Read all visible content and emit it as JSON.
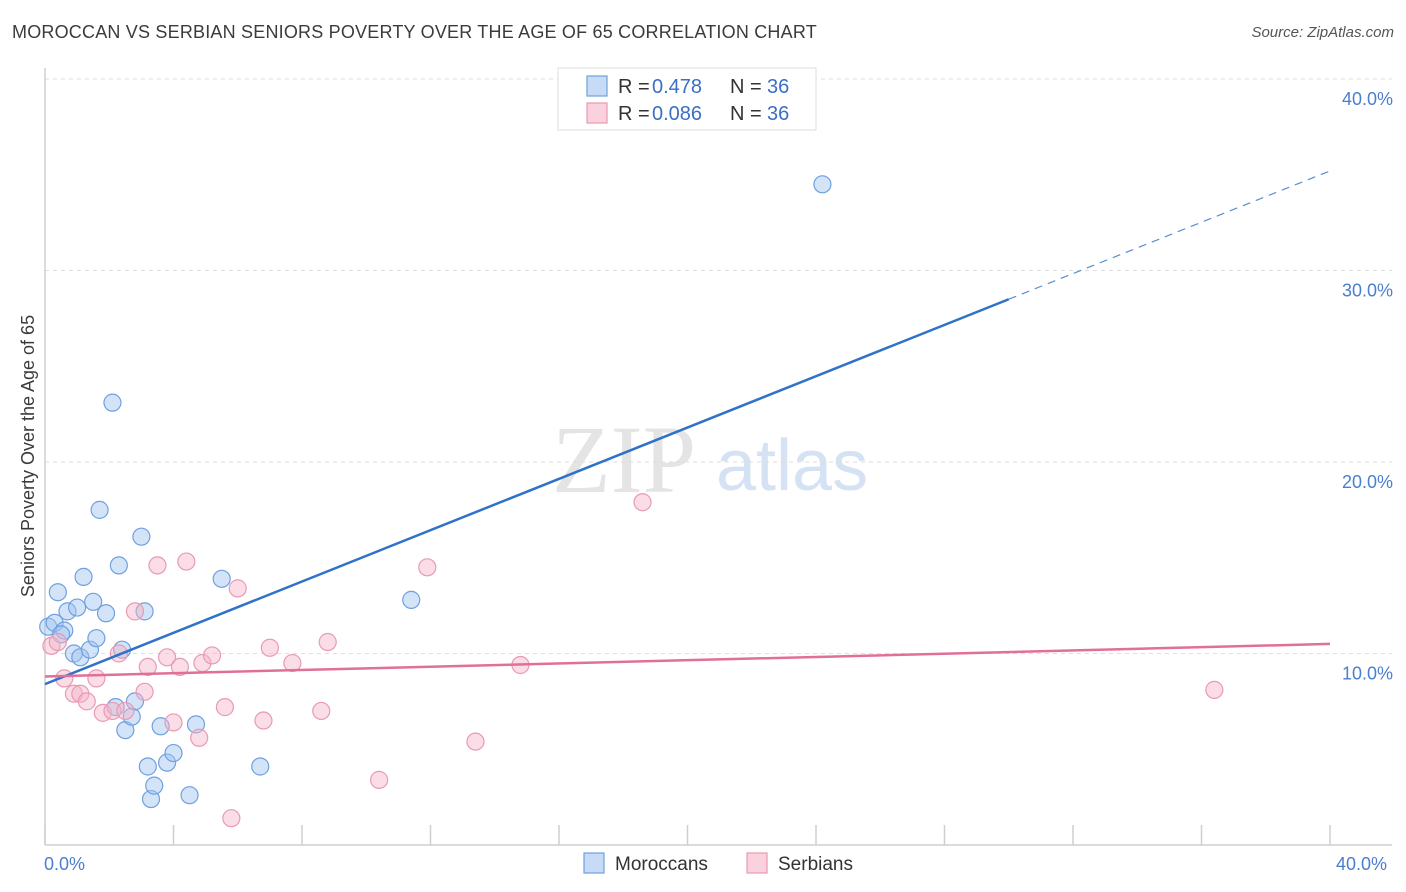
{
  "title": "MOROCCAN VS SERBIAN SENIORS POVERTY OVER THE AGE OF 65 CORRELATION CHART",
  "source": "Source: ZipAtlas.com",
  "watermark": {
    "zip": "ZIP",
    "atlas": "atlas"
  },
  "chart_data": {
    "type": "scatter",
    "ylabel": "Seniors Poverty Over the Age of 65",
    "xlim": [
      0,
      40
    ],
    "ylim": [
      0,
      40
    ],
    "x_tick_labels": [
      "0.0%",
      "40.0%"
    ],
    "y_ticks": [
      10,
      20,
      30,
      40
    ],
    "y_tick_labels": [
      "10.0%",
      "20.0%",
      "30.0%",
      "40.0%"
    ],
    "legend": [
      {
        "label": "R = ",
        "r": "0.478",
        "n_label": "N = ",
        "n": "36"
      },
      {
        "label": "R = ",
        "r": "0.086",
        "n_label": "N = ",
        "n": "36"
      }
    ],
    "series": [
      {
        "name": "Moroccans",
        "color": "#6fa0e0",
        "fill": "rgba(160,195,240,0.45)",
        "line_color": "#2f72c8",
        "trend": {
          "x0": 0,
          "y0": 8.4,
          "x1": 30,
          "y1": 28.5,
          "dash_to_x": 40,
          "dash_to_y": 35.2
        },
        "points": [
          [
            0.1,
            11.4
          ],
          [
            0.3,
            11.6
          ],
          [
            0.4,
            13.2
          ],
          [
            0.6,
            11.2
          ],
          [
            0.7,
            12.2
          ],
          [
            0.9,
            10.0
          ],
          [
            1.0,
            12.4
          ],
          [
            1.1,
            9.8
          ],
          [
            1.2,
            14.0
          ],
          [
            1.4,
            10.2
          ],
          [
            1.5,
            12.7
          ],
          [
            1.6,
            10.8
          ],
          [
            1.7,
            17.5
          ],
          [
            1.9,
            12.1
          ],
          [
            2.1,
            23.1
          ],
          [
            2.3,
            14.6
          ],
          [
            2.4,
            10.2
          ],
          [
            2.5,
            6.0
          ],
          [
            2.7,
            6.7
          ],
          [
            2.8,
            7.5
          ],
          [
            2.2,
            7.2
          ],
          [
            3.0,
            16.1
          ],
          [
            3.1,
            12.2
          ],
          [
            3.2,
            4.1
          ],
          [
            3.3,
            2.4
          ],
          [
            3.4,
            3.1
          ],
          [
            3.6,
            6.2
          ],
          [
            3.8,
            4.3
          ],
          [
            4.0,
            4.8
          ],
          [
            4.5,
            2.6
          ],
          [
            4.7,
            6.3
          ],
          [
            5.5,
            13.9
          ],
          [
            6.7,
            4.1
          ],
          [
            11.4,
            12.8
          ],
          [
            24.2,
            34.5
          ],
          [
            0.5,
            11.0
          ]
        ]
      },
      {
        "name": "Serbians",
        "color": "#e89ab5",
        "fill": "rgba(245,180,200,0.45)",
        "line_color": "#e0709a",
        "trend": {
          "x0": 0,
          "y0": 8.8,
          "x1": 40,
          "y1": 10.5
        },
        "points": [
          [
            0.2,
            10.4
          ],
          [
            0.4,
            10.6
          ],
          [
            0.6,
            8.7
          ],
          [
            0.9,
            7.9
          ],
          [
            1.1,
            7.9
          ],
          [
            1.3,
            7.5
          ],
          [
            1.6,
            8.7
          ],
          [
            1.8,
            6.9
          ],
          [
            2.1,
            7.0
          ],
          [
            2.3,
            10.0
          ],
          [
            2.5,
            7.0
          ],
          [
            2.8,
            12.2
          ],
          [
            3.1,
            8.0
          ],
          [
            3.2,
            9.3
          ],
          [
            3.5,
            14.6
          ],
          [
            3.8,
            9.8
          ],
          [
            4.0,
            6.4
          ],
          [
            4.2,
            9.3
          ],
          [
            4.4,
            14.8
          ],
          [
            4.8,
            5.6
          ],
          [
            4.9,
            9.5
          ],
          [
            5.2,
            9.9
          ],
          [
            5.6,
            7.2
          ],
          [
            5.8,
            1.4
          ],
          [
            6.0,
            13.4
          ],
          [
            6.8,
            6.5
          ],
          [
            7.0,
            10.3
          ],
          [
            7.7,
            9.5
          ],
          [
            8.6,
            7.0
          ],
          [
            8.8,
            10.6
          ],
          [
            10.4,
            3.4
          ],
          [
            11.9,
            14.5
          ],
          [
            13.4,
            5.4
          ],
          [
            14.8,
            9.4
          ],
          [
            18.6,
            17.9
          ],
          [
            36.4,
            8.1
          ]
        ]
      }
    ]
  }
}
